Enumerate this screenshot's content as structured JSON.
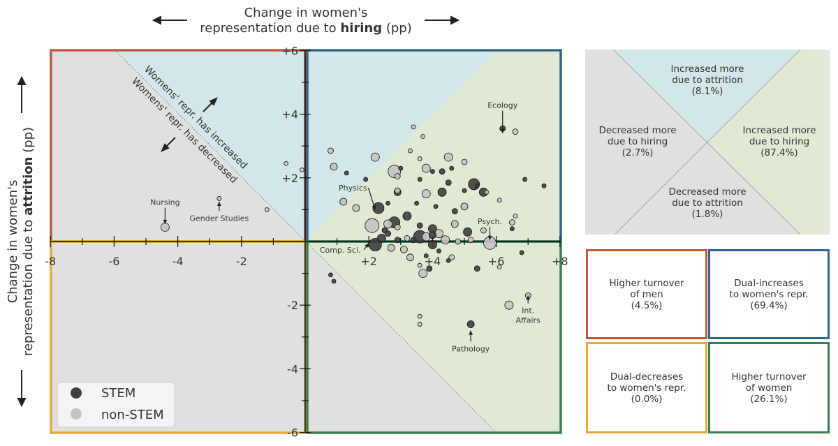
{
  "colors": {
    "red": "#c0583f",
    "blue": "#31658f",
    "yellow": "#e3ab3a",
    "green": "#3a7d54",
    "grey_bg": "#e0e0e0",
    "teal_bg": "#d2e7e7",
    "green_bg": "#dfe9d4",
    "stem": "#3f3f3f",
    "nonstem": "#c4c4c4"
  },
  "chart_data": {
    "type": "scatter",
    "xlabel_line1": "Change in women's",
    "xlabel_line2_pre": "representation due to ",
    "xlabel_line2_bold": "hiring",
    "xlabel_line2_post": " (pp)",
    "ylabel_line1": "Change in women's",
    "ylabel_line2_pre": "representation due to ",
    "ylabel_line2_bold": "attrition",
    "ylabel_line2_post": " (pp)",
    "xlim": [
      -8,
      8
    ],
    "ylim": [
      -6,
      6
    ],
    "xticks": [
      {
        "v": -8,
        "label": "-8"
      },
      {
        "v": -6,
        "label": "-6"
      },
      {
        "v": -4,
        "label": "-4"
      },
      {
        "v": -2,
        "label": "-2"
      },
      {
        "v": 2,
        "label": "+2"
      },
      {
        "v": 4,
        "label": "+4"
      },
      {
        "v": 6,
        "label": "+6"
      },
      {
        "v": 8,
        "label": "+8"
      }
    ],
    "yticks": [
      {
        "v": 6,
        "label": "+6"
      },
      {
        "v": 4,
        "label": "+4"
      },
      {
        "v": 2,
        "label": "+2"
      },
      {
        "v": -2,
        "label": "-2"
      },
      {
        "v": -4,
        "label": "-4"
      },
      {
        "v": -6,
        "label": "-6"
      }
    ],
    "diagonal_label_increased": "Womens' repr. has increased",
    "diagonal_label_decreased": "Womens' repr. has decreased",
    "legend": [
      {
        "name": "STEM",
        "color": "#3f3f3f"
      },
      {
        "name": "non-STEM",
        "color": "#c4c4c4"
      }
    ],
    "annotations": [
      {
        "text": "Ecology",
        "x": 6.2,
        "y": 4.2,
        "ax": 6.2,
        "ay": 3.4
      },
      {
        "text": "Physics",
        "x": 1.5,
        "y": 1.6,
        "ax": 2.2,
        "ay": 1.0
      },
      {
        "text": "Psych.",
        "x": 5.8,
        "y": 0.55,
        "ax": 5.8,
        "ay": 0.05
      },
      {
        "text": "Comp. Sci.",
        "x": 1.1,
        "y": -0.35,
        "ax": 2.0,
        "ay": -0.05
      },
      {
        "text": "Nursing",
        "x": -4.4,
        "y": 1.15,
        "ax": -4.4,
        "ay": 0.55
      },
      {
        "text": "Gender Studies",
        "x": -2.7,
        "y": 0.65,
        "ax": -2.7,
        "ay": 1.25
      },
      {
        "text": "Int.",
        "x": 7.0,
        "y": -2.25,
        "ax": 7.0,
        "ay": -1.7
      },
      {
        "text": "Affairs",
        "x": 7.0,
        "y": -2.55,
        "ax": null,
        "ay": null
      },
      {
        "text": "Pathology",
        "x": 5.2,
        "y": -3.45,
        "ax": 5.2,
        "ay": -2.8
      }
    ],
    "points": [
      {
        "x": 6.2,
        "y": 3.55,
        "s": 4,
        "stem": true
      },
      {
        "x": 6.6,
        "y": 3.45,
        "s": 4,
        "stem": false
      },
      {
        "x": 3.4,
        "y": 3.6,
        "s": 3,
        "stem": false
      },
      {
        "x": 3.7,
        "y": 3.3,
        "s": 3,
        "stem": false
      },
      {
        "x": 0.8,
        "y": 2.85,
        "s": 4,
        "stem": false
      },
      {
        "x": 3.3,
        "y": 2.85,
        "s": 3,
        "stem": false
      },
      {
        "x": 2.2,
        "y": 2.65,
        "s": 6,
        "stem": false
      },
      {
        "x": 3.6,
        "y": 2.6,
        "s": 3,
        "stem": false
      },
      {
        "x": 4.5,
        "y": 2.65,
        "s": 6,
        "stem": false
      },
      {
        "x": 5.0,
        "y": 2.5,
        "s": 4,
        "stem": false
      },
      {
        "x": 4.6,
        "y": 2.3,
        "s": 3,
        "stem": true
      },
      {
        "x": 0.9,
        "y": 2.35,
        "s": 5,
        "stem": false
      },
      {
        "x": -0.6,
        "y": 2.45,
        "s": 3,
        "stem": false
      },
      {
        "x": -0.1,
        "y": 2.25,
        "s": 3,
        "stem": false
      },
      {
        "x": 3.0,
        "y": 2.3,
        "s": 3,
        "stem": true
      },
      {
        "x": 3.8,
        "y": 2.3,
        "s": 6,
        "stem": false
      },
      {
        "x": 4.3,
        "y": 2.2,
        "s": 4,
        "stem": true
      },
      {
        "x": 4.0,
        "y": 2.2,
        "s": 3,
        "stem": true
      },
      {
        "x": 2.9,
        "y": 2.05,
        "s": 4,
        "stem": false
      },
      {
        "x": 2.8,
        "y": 2.2,
        "s": 9,
        "stem": false
      },
      {
        "x": 1.3,
        "y": 2.15,
        "s": 3,
        "stem": true
      },
      {
        "x": 1.9,
        "y": 1.95,
        "s": 3,
        "stem": true
      },
      {
        "x": 3.6,
        "y": 1.95,
        "s": 3,
        "stem": true
      },
      {
        "x": 5.4,
        "y": 1.75,
        "s": 3,
        "stem": true
      },
      {
        "x": 5.3,
        "y": 1.8,
        "s": 8,
        "stem": true
      },
      {
        "x": 6.9,
        "y": 1.95,
        "s": 3,
        "stem": true
      },
      {
        "x": 7.5,
        "y": 1.75,
        "s": 3,
        "stem": true
      },
      {
        "x": 4.5,
        "y": 1.85,
        "s": 4,
        "stem": true
      },
      {
        "x": 2.9,
        "y": 1.6,
        "s": 4,
        "stem": false
      },
      {
        "x": 2.9,
        "y": 1.55,
        "s": 5,
        "stem": true
      },
      {
        "x": 3.8,
        "y": 1.5,
        "s": 6,
        "stem": false
      },
      {
        "x": 4.3,
        "y": 1.55,
        "s": 6,
        "stem": true
      },
      {
        "x": 5.0,
        "y": 1.6,
        "s": 3,
        "stem": true
      },
      {
        "x": 5.6,
        "y": 1.55,
        "s": 6,
        "stem": true
      },
      {
        "x": 5.7,
        "y": 1.55,
        "s": 3,
        "stem": false
      },
      {
        "x": 6.1,
        "y": 1.3,
        "s": 3,
        "stem": false
      },
      {
        "x": 1.2,
        "y": 1.25,
        "s": 5,
        "stem": false
      },
      {
        "x": 2.3,
        "y": 1.05,
        "s": 8,
        "stem": true
      },
      {
        "x": 2.6,
        "y": 1.2,
        "s": 3,
        "stem": true
      },
      {
        "x": 1.6,
        "y": 1.05,
        "s": 5,
        "stem": false
      },
      {
        "x": 3.5,
        "y": 1.2,
        "s": 3,
        "stem": true
      },
      {
        "x": 4.1,
        "y": 1.1,
        "s": 3,
        "stem": true
      },
      {
        "x": 4.7,
        "y": 0.95,
        "s": 4,
        "stem": true
      },
      {
        "x": 5.0,
        "y": 1.1,
        "s": 5,
        "stem": false
      },
      {
        "x": -1.2,
        "y": 1.0,
        "s": 3,
        "stem": false
      },
      {
        "x": 3.2,
        "y": 0.8,
        "s": 6,
        "stem": true
      },
      {
        "x": 2.8,
        "y": 0.6,
        "s": 8,
        "stem": true
      },
      {
        "x": 2.1,
        "y": 0.5,
        "s": 10,
        "stem": false
      },
      {
        "x": 2.6,
        "y": 0.55,
        "s": 6,
        "stem": false
      },
      {
        "x": 2.5,
        "y": 0.35,
        "s": 4,
        "stem": true
      },
      {
        "x": 2.9,
        "y": 0.45,
        "s": 4,
        "stem": false
      },
      {
        "x": 3.6,
        "y": 0.5,
        "s": 4,
        "stem": true
      },
      {
        "x": 4.0,
        "y": 0.4,
        "s": 6,
        "stem": true
      },
      {
        "x": 4.7,
        "y": 0.55,
        "s": 5,
        "stem": false
      },
      {
        "x": 5.1,
        "y": 0.3,
        "s": 6,
        "stem": true
      },
      {
        "x": 5.6,
        "y": 0.35,
        "s": 4,
        "stem": false
      },
      {
        "x": 6.5,
        "y": 0.6,
        "s": 4,
        "stem": false
      },
      {
        "x": 6.6,
        "y": 0.8,
        "s": 3,
        "stem": false
      },
      {
        "x": 6.5,
        "y": 0.4,
        "s": 3,
        "stem": true
      },
      {
        "x": 3.8,
        "y": 0.15,
        "s": 6,
        "stem": false
      },
      {
        "x": 4.2,
        "y": 0.25,
        "s": 6,
        "stem": false
      },
      {
        "x": 3.6,
        "y": 0.15,
        "s": 9,
        "stem": true
      },
      {
        "x": 4.0,
        "y": 0.2,
        "s": 5,
        "stem": true
      },
      {
        "x": 2.6,
        "y": 0.25,
        "s": 4,
        "stem": true
      },
      {
        "x": 2.9,
        "y": 0.05,
        "s": 4,
        "stem": true
      },
      {
        "x": 3.2,
        "y": 0.1,
        "s": 4,
        "stem": false
      },
      {
        "x": 2.4,
        "y": 0.1,
        "s": 6,
        "stem": true
      },
      {
        "x": 4.4,
        "y": 0.05,
        "s": 6,
        "stem": false
      },
      {
        "x": 4.8,
        "y": 0.0,
        "s": 4,
        "stem": false
      },
      {
        "x": 5.2,
        "y": 0.05,
        "s": 4,
        "stem": false
      },
      {
        "x": 5.8,
        "y": -0.05,
        "s": 9,
        "stem": false
      },
      {
        "x": 2.2,
        "y": -0.1,
        "s": 9,
        "stem": true
      },
      {
        "x": 2.7,
        "y": -0.2,
        "s": 5,
        "stem": false
      },
      {
        "x": 3.1,
        "y": -0.25,
        "s": 5,
        "stem": false
      },
      {
        "x": 3.4,
        "y": 0.05,
        "s": 4,
        "stem": true
      },
      {
        "x": 4.0,
        "y": -0.1,
        "s": 6,
        "stem": true
      },
      {
        "x": 4.2,
        "y": -0.3,
        "s": 3,
        "stem": true
      },
      {
        "x": 6.8,
        "y": -0.35,
        "s": 3,
        "stem": true
      },
      {
        "x": 3.3,
        "y": -0.5,
        "s": 5,
        "stem": false
      },
      {
        "x": 3.8,
        "y": -0.45,
        "s": 3,
        "stem": true
      },
      {
        "x": 4.6,
        "y": -0.5,
        "s": 4,
        "stem": false
      },
      {
        "x": 3.6,
        "y": -0.75,
        "s": 3,
        "stem": false
      },
      {
        "x": 4.5,
        "y": -0.6,
        "s": 3,
        "stem": true
      },
      {
        "x": 3.9,
        "y": -0.85,
        "s": 4,
        "stem": true
      },
      {
        "x": 5.4,
        "y": -0.85,
        "s": 4,
        "stem": true
      },
      {
        "x": 6.1,
        "y": -0.8,
        "s": 3,
        "stem": false
      },
      {
        "x": 3.7,
        "y": -1.0,
        "s": 6,
        "stem": false
      },
      {
        "x": 0.8,
        "y": -1.05,
        "s": 3,
        "stem": true
      },
      {
        "x": 0.9,
        "y": -1.25,
        "s": 3,
        "stem": true
      },
      {
        "x": 7.0,
        "y": -1.7,
        "s": 4,
        "stem": false
      },
      {
        "x": 6.4,
        "y": -2.0,
        "s": 6,
        "stem": false
      },
      {
        "x": 3.6,
        "y": -2.35,
        "s": 3,
        "stem": false
      },
      {
        "x": 3.6,
        "y": -2.6,
        "s": 3,
        "stem": false
      },
      {
        "x": 5.2,
        "y": -2.6,
        "s": 5,
        "stem": true
      },
      {
        "x": -4.4,
        "y": 0.45,
        "s": 6,
        "stem": false
      },
      {
        "x": -2.7,
        "y": 1.35,
        "s": 3,
        "stem": false
      }
    ]
  },
  "summary_panel": {
    "top": [
      "Increased more",
      "due to attrition",
      "(8.1%)"
    ],
    "left": [
      "Decreased more",
      "due to hiring",
      "(2.7%)"
    ],
    "right": [
      "Increased more",
      "due to hiring",
      "(87.4%)"
    ],
    "bottom": [
      "Decreased more",
      "due to attrition",
      "(1.8%)"
    ]
  },
  "quadrant_boxes": {
    "tl": [
      "Higher turnover",
      "of men",
      "(4.5%)"
    ],
    "tr": [
      "Dual-increases",
      "to women's repr.",
      "(69.4%)"
    ],
    "bl": [
      "Dual-decreases",
      "to women's repr.",
      "(0.0%)"
    ],
    "br": [
      "Higher turnover",
      "of women",
      "(26.1%)"
    ]
  }
}
